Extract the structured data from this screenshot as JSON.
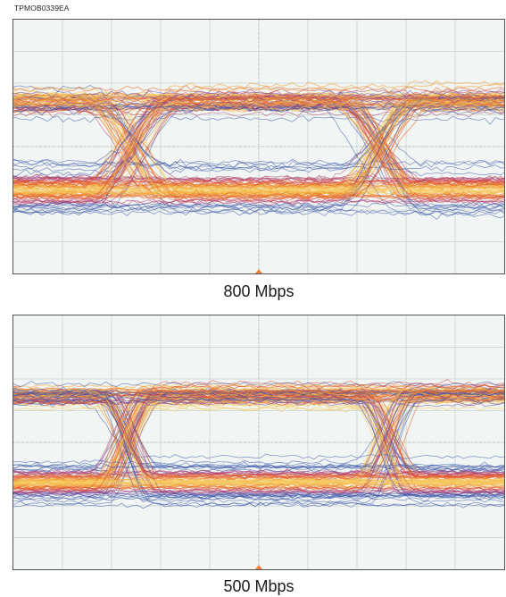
{
  "figure_id": "TPMOB0339EA",
  "colors": {
    "screen_background": "#f1f6f4",
    "grid_line": "#c9d2cf",
    "center_axis": "#9aa3a0",
    "trigger_marker": "#f0803c",
    "trace_palette": [
      "#3a55a8",
      "#6a4ca0",
      "#b03a6a",
      "#d63a3a",
      "#e86a28",
      "#f3a23a",
      "#f6c95a"
    ]
  },
  "chart_data": [
    {
      "type": "eye-diagram",
      "caption": "800 Mbps",
      "grid": true,
      "grid_divisions": {
        "horizontal": 10,
        "vertical": 8
      },
      "eye_crossings_per_screen": 2
    },
    {
      "type": "eye-diagram",
      "caption": "500 Mbps",
      "grid": true,
      "grid_divisions": {
        "horizontal": 10,
        "vertical": 8
      },
      "eye_crossings_per_screen": 2
    }
  ]
}
